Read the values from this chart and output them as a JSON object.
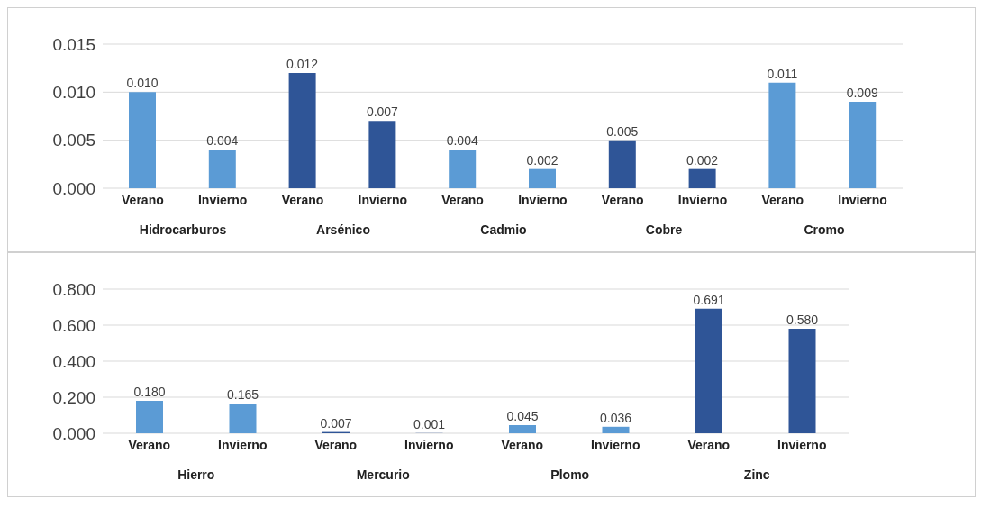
{
  "chart_data": [
    {
      "type": "bar",
      "categories": [
        "Verano",
        "Invierno",
        "Verano",
        "Invierno",
        "Verano",
        "Invierno",
        "Verano",
        "Invierno",
        "Verano",
        "Invierno"
      ],
      "values": [
        0.01,
        0.004,
        0.012,
        0.007,
        0.004,
        0.002,
        0.005,
        0.002,
        0.011,
        0.009
      ],
      "colors": [
        "#5b9bd5",
        "#5b9bd5",
        "#2f5597",
        "#2f5597",
        "#5b9bd5",
        "#5b9bd5",
        "#2f5597",
        "#2f5597",
        "#5b9bd5",
        "#5b9bd5"
      ],
      "value_labels": [
        "0.010",
        "0.004",
        "0.012",
        "0.007",
        "0.004",
        "0.002",
        "0.005",
        "0.002",
        "0.011",
        "0.009"
      ],
      "ylim": [
        0,
        0.015
      ],
      "yticks": [
        {
          "value": 0,
          "label": "0.000"
        },
        {
          "value": 0.005,
          "label": "0.005"
        },
        {
          "value": 0.01,
          "label": "0.010"
        },
        {
          "value": 0.015,
          "label": "0.015"
        }
      ],
      "grid": "y",
      "annotations": [
        "Hidrocarburos",
        "Arsénico",
        "Cadmio",
        "Cobre",
        "Cromo"
      ]
    },
    {
      "type": "bar",
      "categories": [
        "Verano",
        "Invierno",
        "Verano",
        "Invierno",
        "Verano",
        "Invierno",
        "Verano",
        "Invierno"
      ],
      "values": [
        0.18,
        0.165,
        0.007,
        0.001,
        0.045,
        0.036,
        0.691,
        0.58
      ],
      "colors": [
        "#5b9bd5",
        "#5b9bd5",
        "#2f5597",
        "#2f5597",
        "#5b9bd5",
        "#5b9bd5",
        "#2f5597",
        "#2f5597"
      ],
      "value_labels": [
        "0.180",
        "0.165",
        "0.007",
        "0.001",
        "0.045",
        "0.036",
        "0.691",
        "0.580"
      ],
      "ylim": [
        0,
        0.8
      ],
      "yticks": [
        {
          "value": 0,
          "label": "0.000"
        },
        {
          "value": 0.2,
          "label": "0.200"
        },
        {
          "value": 0.4,
          "label": "0.400"
        },
        {
          "value": 0.6,
          "label": "0.600"
        },
        {
          "value": 0.8,
          "label": "0.800"
        }
      ],
      "grid": "y",
      "annotations": [
        "Hierro",
        "Mercurio",
        "Plomo",
        "Zinc"
      ]
    }
  ]
}
